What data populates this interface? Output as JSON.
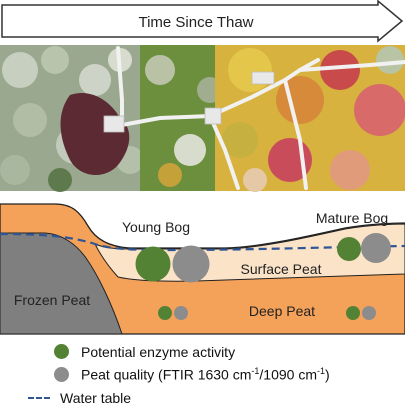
{
  "arrow": {
    "label": "Time Since Thaw"
  },
  "photo": {
    "description": ""
  },
  "diagram": {
    "young_bog_label": "Young Bog",
    "mature_bog_label": "Mature Bog",
    "frozen_peat_label": "Frozen Peat",
    "surface_peat_label": "Surface Peat",
    "deep_peat_label": "Deep Peat"
  },
  "legend": {
    "enzyme": {
      "label": "Potential enzyme  activity",
      "color": "#548235"
    },
    "peat_quality": {
      "label_prefix": "Peat quality  (FTIR 1630 cm",
      "sup1": "-1",
      "label_mid": "/1090 cm",
      "sup2": "-1",
      "label_suffix": ")",
      "color": "#8c8c8c"
    },
    "water_table": {
      "label": "Water table",
      "color": "#2f5597"
    }
  },
  "colors": {
    "deep_peat": "#f4a25a",
    "surface_peat": "#fbe3c8",
    "frozen_peat": "#7f7f7f",
    "enzyme_dot": "#548235",
    "quality_dot": "#8c8c8c"
  }
}
